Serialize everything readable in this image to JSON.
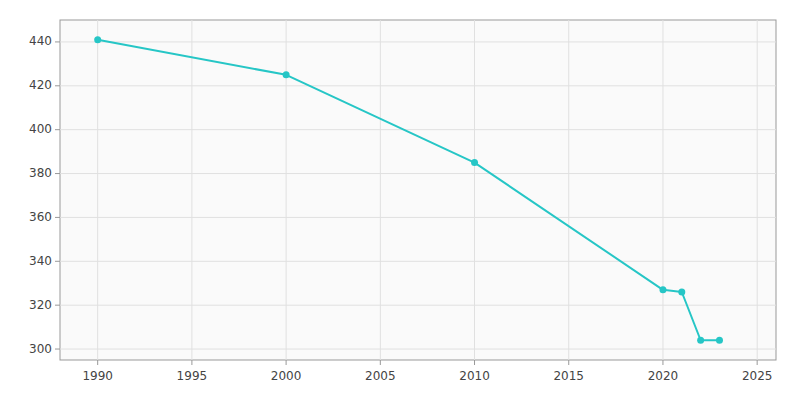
{
  "chart_data": {
    "type": "line",
    "x": [
      1990,
      2000,
      2010,
      2020,
      2021,
      2022,
      2023
    ],
    "values": [
      441,
      425,
      385,
      327,
      326,
      304,
      304
    ],
    "color": "#26c6c6",
    "marker": "circle",
    "xlim": [
      1988,
      2026
    ],
    "ylim": [
      295,
      450
    ],
    "xticks": [
      1990,
      1995,
      2000,
      2005,
      2010,
      2015,
      2020,
      2025
    ],
    "yticks": [
      300,
      320,
      340,
      360,
      380,
      400,
      420,
      440
    ],
    "grid": true
  }
}
